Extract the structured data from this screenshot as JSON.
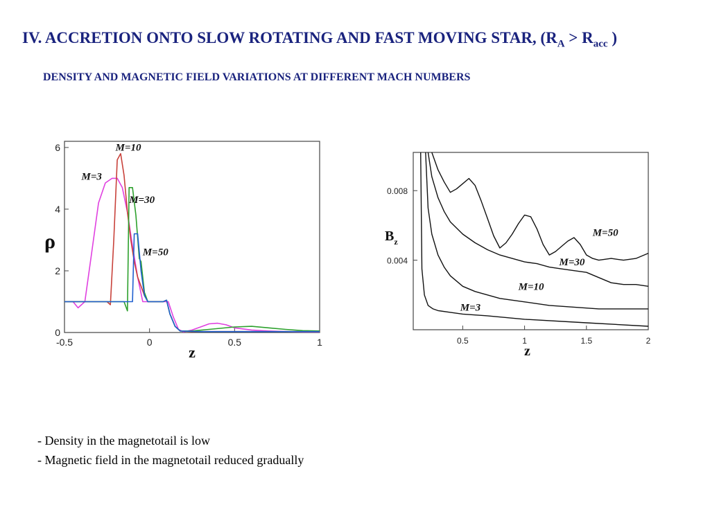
{
  "slide": {
    "title_main": "IV. ACCRETION ONTO SLOW ROTATING AND FAST MOVING STAR, (R",
    "title_sub1": "A",
    "title_mid": " > R",
    "title_sub2": "acc",
    "title_end": " )",
    "subtitle": "DENSITY AND MAGNETIC FIELD VARIATIONS AT DIFFERENT MACH NUMBERS",
    "bullets": [
      "- Density in the magnetotail is low",
      "- Magnetic field in the magnetotail reduced gradually"
    ]
  },
  "chart_data": [
    {
      "type": "line",
      "xlabel": "z",
      "ylabel": "ρ",
      "xlim": [
        -0.5,
        1
      ],
      "ylim": [
        0,
        6.2
      ],
      "xticks": [
        -0.5,
        0,
        0.5,
        1
      ],
      "xtick_labels": [
        "-0.5",
        "0",
        "0.5",
        "1"
      ],
      "yticks": [
        0,
        2,
        4,
        6
      ],
      "ytick_labels": [
        "0",
        "2",
        "4",
        "6"
      ],
      "series": [
        {
          "name": "M=3",
          "color": "#e040e0",
          "x": [
            -0.5,
            -0.45,
            -0.42,
            -0.38,
            -0.34,
            -0.3,
            -0.26,
            -0.22,
            -0.19,
            -0.16,
            -0.13,
            -0.1,
            -0.07,
            -0.04,
            -0.01,
            0.02,
            0.05,
            0.08,
            0.11,
            0.14,
            0.17,
            0.2,
            0.25,
            0.3,
            0.35,
            0.4,
            0.45,
            0.5,
            0.6,
            0.7,
            0.8,
            0.9,
            1.0
          ],
          "y": [
            1.0,
            1.0,
            0.8,
            1.0,
            2.6,
            4.2,
            4.85,
            5.0,
            5.0,
            4.7,
            3.9,
            2.8,
            1.8,
            1.0,
            1.0,
            1.0,
            1.0,
            1.0,
            1.0,
            0.5,
            0.1,
            0.02,
            0.08,
            0.18,
            0.28,
            0.3,
            0.25,
            0.15,
            0.08,
            0.05,
            0.03,
            0.02,
            0.02
          ]
        },
        {
          "name": "M=10",
          "color": "#c8413a",
          "x": [
            -0.5,
            -0.3,
            -0.25,
            -0.23,
            -0.21,
            -0.19,
            -0.17,
            -0.15,
            -0.13,
            -0.11,
            -0.09,
            -0.07,
            -0.05,
            -0.03,
            -0.01,
            0.02,
            0.05,
            0.08,
            0.1,
            0.12,
            0.15,
            0.18,
            0.25,
            0.35,
            0.5,
            0.7,
            1.0
          ],
          "y": [
            1.0,
            1.0,
            1.0,
            0.9,
            3.0,
            5.6,
            5.8,
            5.1,
            3.9,
            3.0,
            2.3,
            1.8,
            1.5,
            1.2,
            1.0,
            1.0,
            1.0,
            1.0,
            1.05,
            0.6,
            0.2,
            0.05,
            0.03,
            0.03,
            0.03,
            0.03,
            0.03
          ]
        },
        {
          "name": "M=30",
          "color": "#2ca02c",
          "x": [
            -0.5,
            -0.2,
            -0.15,
            -0.13,
            -0.12,
            -0.1,
            -0.08,
            -0.06,
            -0.05,
            -0.03,
            -0.01,
            0.02,
            0.05,
            0.08,
            0.1,
            0.12,
            0.15,
            0.18,
            0.25,
            0.35,
            0.5,
            0.6,
            0.7,
            0.8,
            0.9,
            1.0
          ],
          "y": [
            1.0,
            1.0,
            1.0,
            0.7,
            4.7,
            4.7,
            3.8,
            2.4,
            2.3,
            1.3,
            1.0,
            1.0,
            1.0,
            1.0,
            1.05,
            0.6,
            0.2,
            0.05,
            0.05,
            0.1,
            0.18,
            0.2,
            0.15,
            0.1,
            0.06,
            0.05
          ]
        },
        {
          "name": "M=50",
          "color": "#2060d0",
          "x": [
            -0.5,
            -0.15,
            -0.1,
            -0.09,
            -0.07,
            -0.05,
            -0.03,
            -0.01,
            0.02,
            0.05,
            0.08,
            0.1,
            0.12,
            0.15,
            0.18,
            0.3,
            0.5,
            0.7,
            1.0
          ],
          "y": [
            1.0,
            1.0,
            1.0,
            3.2,
            3.2,
            2.0,
            1.2,
            1.0,
            1.0,
            1.0,
            1.0,
            1.05,
            0.6,
            0.2,
            0.05,
            0.03,
            0.03,
            0.03,
            0.03
          ]
        }
      ],
      "annotations": [
        {
          "text": "M=10",
          "x": -0.2,
          "y": 5.9
        },
        {
          "text": "M=3",
          "x": -0.4,
          "y": 4.95
        },
        {
          "text": "M=30",
          "x": -0.12,
          "y": 4.2
        },
        {
          "text": "M=50",
          "x": -0.04,
          "y": 2.5
        }
      ]
    },
    {
      "type": "line",
      "xlabel": "z",
      "ylabel": "B",
      "ylabel_sub": "z",
      "xlim": [
        0.1,
        2.0
      ],
      "ylim": [
        0.0,
        0.0102
      ],
      "xticks": [
        0.5,
        1,
        1.5,
        2
      ],
      "xtick_labels": [
        "0.5",
        "1",
        "1.5",
        "2"
      ],
      "yticks": [
        0.004,
        0.008
      ],
      "ytick_labels": [
        "0.004",
        "0.008"
      ],
      "series": [
        {
          "name": "M=50",
          "color": "#111111",
          "x": [
            0.25,
            0.3,
            0.35,
            0.4,
            0.45,
            0.5,
            0.55,
            0.6,
            0.65,
            0.7,
            0.75,
            0.8,
            0.85,
            0.9,
            0.95,
            1.0,
            1.05,
            1.1,
            1.15,
            1.2,
            1.25,
            1.3,
            1.35,
            1.4,
            1.45,
            1.5,
            1.55,
            1.6,
            1.7,
            1.8,
            1.9,
            2.0
          ],
          "y": [
            0.0102,
            0.0092,
            0.0085,
            0.0079,
            0.0081,
            0.0084,
            0.0087,
            0.0083,
            0.0074,
            0.0064,
            0.0054,
            0.0047,
            0.005,
            0.0055,
            0.0061,
            0.0066,
            0.0065,
            0.0058,
            0.0049,
            0.0043,
            0.0045,
            0.0048,
            0.0051,
            0.0053,
            0.0049,
            0.0043,
            0.0041,
            0.004,
            0.0041,
            0.004,
            0.0041,
            0.0044
          ]
        },
        {
          "name": "M=30",
          "color": "#111111",
          "x": [
            0.22,
            0.25,
            0.3,
            0.35,
            0.4,
            0.5,
            0.6,
            0.7,
            0.8,
            0.9,
            1.0,
            1.1,
            1.2,
            1.3,
            1.4,
            1.5,
            1.6,
            1.7,
            1.8,
            1.9,
            2.0
          ],
          "y": [
            0.0102,
            0.0088,
            0.0076,
            0.0068,
            0.0062,
            0.0055,
            0.005,
            0.0046,
            0.0043,
            0.0041,
            0.0039,
            0.0038,
            0.0036,
            0.0035,
            0.0034,
            0.0033,
            0.003,
            0.0027,
            0.0026,
            0.0026,
            0.0025
          ]
        },
        {
          "name": "M=10",
          "color": "#111111",
          "x": [
            0.2,
            0.22,
            0.25,
            0.3,
            0.35,
            0.4,
            0.5,
            0.6,
            0.7,
            0.8,
            1.0,
            1.2,
            1.4,
            1.6,
            1.8,
            2.0
          ],
          "y": [
            0.0102,
            0.007,
            0.0055,
            0.0043,
            0.0036,
            0.0031,
            0.0025,
            0.0022,
            0.002,
            0.0018,
            0.0016,
            0.0014,
            0.0013,
            0.0012,
            0.0012,
            0.0012
          ]
        },
        {
          "name": "M=3",
          "color": "#111111",
          "x": [
            0.16,
            0.17,
            0.19,
            0.22,
            0.26,
            0.3,
            0.4,
            0.5,
            0.7,
            1.0,
            1.5,
            2.0
          ],
          "y": [
            0.0102,
            0.0035,
            0.002,
            0.0014,
            0.0012,
            0.0011,
            0.001,
            0.0009,
            0.0008,
            0.0006,
            0.0004,
            0.0002
          ]
        }
      ],
      "annotations": [
        {
          "text": "M=50",
          "x": 1.55,
          "y": 0.0054
        },
        {
          "text": "M=30",
          "x": 1.28,
          "y": 0.0037
        },
        {
          "text": "M=10",
          "x": 0.95,
          "y": 0.0023
        },
        {
          "text": "M=3",
          "x": 0.48,
          "y": 0.0011
        }
      ]
    }
  ]
}
